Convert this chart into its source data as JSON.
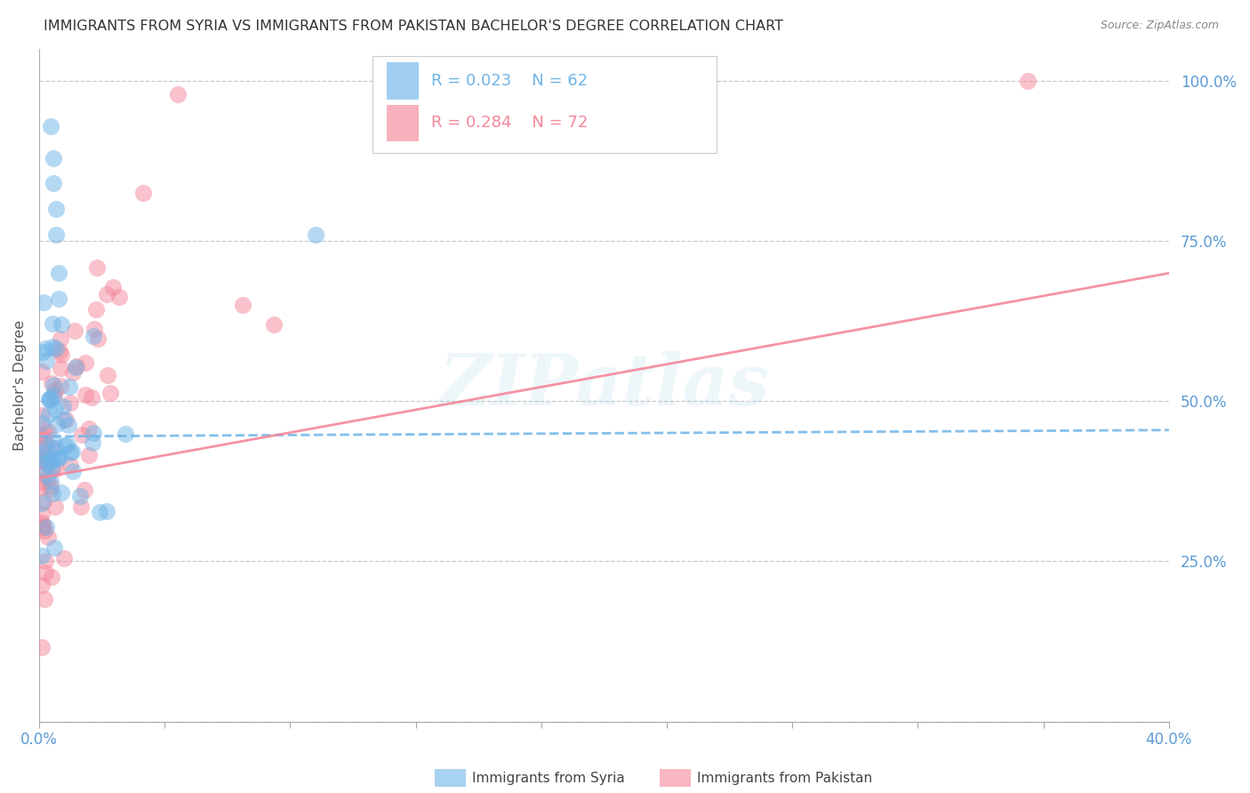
{
  "title": "IMMIGRANTS FROM SYRIA VS IMMIGRANTS FROM PAKISTAN BACHELOR'S DEGREE CORRELATION CHART",
  "source": "Source: ZipAtlas.com",
  "ylabel": "Bachelor's Degree",
  "xmin": 0.0,
  "xmax": 0.4,
  "ymin": 0.0,
  "ymax": 1.05,
  "watermark_text": "ZIPatlas",
  "syria_color": "#6eb4e8",
  "pakistan_color": "#f4879a",
  "syria_R": 0.023,
  "syria_N": 62,
  "pakistan_R": 0.284,
  "pakistan_N": 72,
  "bg_color": "#ffffff",
  "grid_color": "#c8c8c8",
  "title_color": "#333333",
  "tick_color": "#5b9bd5",
  "syria_trend": [
    0.0,
    0.4,
    0.445,
    0.455
  ],
  "pakistan_trend": [
    0.0,
    0.4,
    0.38,
    0.7
  ],
  "legend_R1": "R = 0.023",
  "legend_N1": "N = 62",
  "legend_R2": "R = 0.284",
  "legend_N2": "N = 72",
  "legend_label1": "Immigrants from Syria",
  "legend_label2": "Immigrants from Pakistan"
}
